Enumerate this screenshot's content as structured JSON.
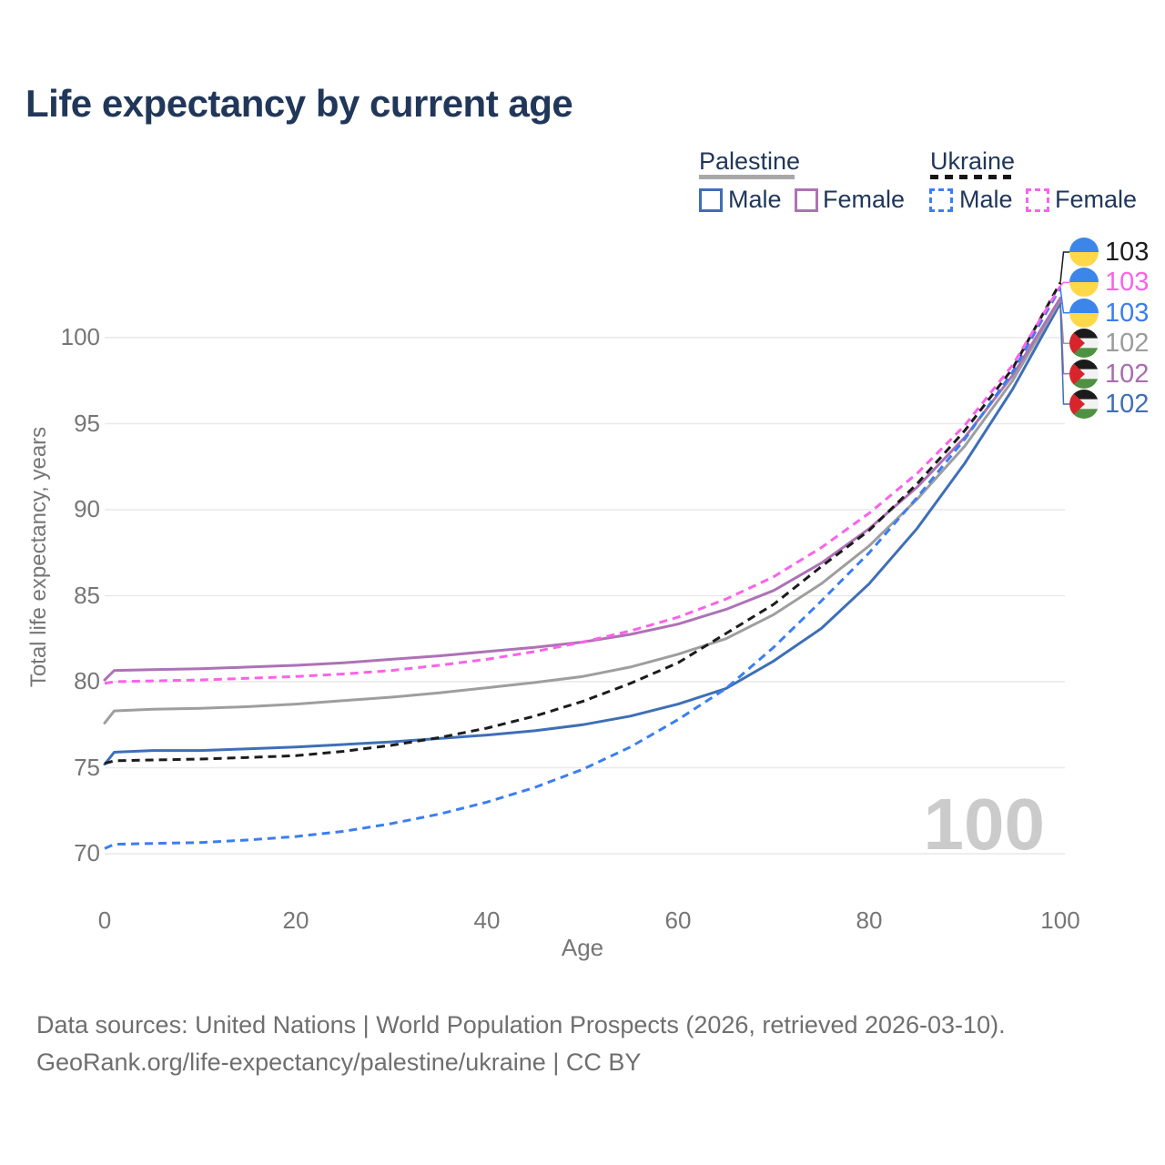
{
  "title": "Life expectancy by current age",
  "watermark": "100",
  "legend": {
    "groups": [
      {
        "name": "Palestine",
        "line_style": "solid",
        "underline_color": "#a8a8a8",
        "items": [
          {
            "label": "Male",
            "color": "#3e6fb7"
          },
          {
            "label": "Female",
            "color": "#ae72b5"
          }
        ]
      },
      {
        "name": "Ukraine",
        "line_style": "dashed",
        "underline_color": "#161616",
        "items": [
          {
            "label": "Male",
            "color": "#3b7ef0"
          },
          {
            "label": "Female",
            "color": "#fb62e9"
          }
        ]
      }
    ]
  },
  "axes": {
    "y_title": "Total life expectancy, years",
    "x_title": "Age",
    "y_ticks": [
      100,
      95,
      90,
      85,
      80,
      75,
      70
    ],
    "x_ticks": [
      0,
      20,
      40,
      60,
      80,
      100
    ]
  },
  "end_labels": [
    {
      "flag": "ukraine",
      "value": "103",
      "color": "#1c1c1c",
      "series": "Ukraine total"
    },
    {
      "flag": "ukraine",
      "value": "103",
      "color": "#fb62e9",
      "series": "Ukraine female"
    },
    {
      "flag": "ukraine",
      "value": "103",
      "color": "#3b7ef0",
      "series": "Ukraine male"
    },
    {
      "flag": "palestine",
      "value": "102",
      "color": "#9c9c9c",
      "series": "Palestine total"
    },
    {
      "flag": "palestine",
      "value": "102",
      "color": "#aa6cb0",
      "series": "Palestine female"
    },
    {
      "flag": "palestine",
      "value": "102",
      "color": "#3e6fb7",
      "series": "Palestine male"
    }
  ],
  "flags": {
    "ukraine": {
      "top": "#3c86ea",
      "bottom": "#ffd84a"
    },
    "palestine": {
      "black": "#1b1b1b",
      "white": "#f2f2f2",
      "green": "#4f9143",
      "red": "#d8252c"
    }
  },
  "source": {
    "line1": "Data sources: United Nations | World Population Prospects (2026, retrieved 2026-03-10).",
    "line2": "GeoRank.org/life-expectancy/palestine/ukraine | CC BY"
  },
  "chart_data": {
    "type": "line",
    "title": "Life expectancy by current age",
    "xlabel": "Age",
    "ylabel": "Total life expectancy, years",
    "xlim": [
      0,
      100
    ],
    "ylim": [
      69,
      104
    ],
    "grid": "horizontal",
    "gridline_color": "#e9e9e9",
    "x": [
      0,
      1,
      5,
      10,
      15,
      20,
      25,
      30,
      35,
      40,
      45,
      50,
      55,
      60,
      65,
      70,
      75,
      80,
      85,
      90,
      95,
      100
    ],
    "series": [
      {
        "name": "Palestine male",
        "country": "Palestine",
        "sex": "Male",
        "color": "#3e6fb7",
        "dashed": false,
        "values": [
          75.2,
          75.9,
          76.0,
          76.0,
          76.1,
          76.2,
          76.35,
          76.5,
          76.7,
          76.9,
          77.15,
          77.5,
          78.0,
          78.7,
          79.6,
          81.2,
          83.1,
          85.7,
          88.9,
          92.7,
          97.0,
          102.0
        ]
      },
      {
        "name": "Palestine total",
        "country": "Palestine",
        "sex": "Total",
        "color": "#9e9e9e",
        "dashed": false,
        "values": [
          77.6,
          78.3,
          78.4,
          78.45,
          78.55,
          78.7,
          78.9,
          79.1,
          79.35,
          79.65,
          79.95,
          80.3,
          80.85,
          81.6,
          82.5,
          83.9,
          85.7,
          87.9,
          90.6,
          93.7,
          97.5,
          102.2
        ]
      },
      {
        "name": "Palestine female",
        "country": "Palestine",
        "sex": "Female",
        "color": "#ae72b5",
        "dashed": false,
        "values": [
          80.1,
          80.65,
          80.7,
          80.75,
          80.85,
          80.95,
          81.1,
          81.3,
          81.5,
          81.75,
          82.0,
          82.3,
          82.75,
          83.35,
          84.2,
          85.3,
          86.9,
          88.9,
          91.3,
          94.2,
          97.8,
          102.3
        ]
      },
      {
        "name": "Ukraine male",
        "country": "Ukraine",
        "sex": "Male",
        "color": "#3b7ef0",
        "dashed": true,
        "values": [
          70.3,
          70.55,
          70.6,
          70.65,
          70.8,
          71.0,
          71.3,
          71.75,
          72.3,
          73.0,
          73.85,
          74.9,
          76.2,
          77.8,
          79.6,
          82.0,
          84.7,
          87.5,
          90.7,
          94.1,
          98.0,
          102.9
        ]
      },
      {
        "name": "Ukraine total",
        "country": "Ukraine",
        "sex": "Total",
        "color": "#1c1c1c",
        "dashed": true,
        "values": [
          75.25,
          75.4,
          75.45,
          75.5,
          75.6,
          75.7,
          75.95,
          76.3,
          76.75,
          77.3,
          78.0,
          78.85,
          79.9,
          81.1,
          82.8,
          84.5,
          86.7,
          88.8,
          91.5,
          94.6,
          98.2,
          103.2
        ]
      },
      {
        "name": "Ukraine female",
        "country": "Ukraine",
        "sex": "Female",
        "color": "#fb62e9",
        "dashed": true,
        "values": [
          79.9,
          80.0,
          80.05,
          80.1,
          80.2,
          80.3,
          80.45,
          80.65,
          80.95,
          81.3,
          81.75,
          82.3,
          82.95,
          83.75,
          84.8,
          86.1,
          87.8,
          89.8,
          92.1,
          94.9,
          98.4,
          103.0
        ]
      }
    ]
  }
}
